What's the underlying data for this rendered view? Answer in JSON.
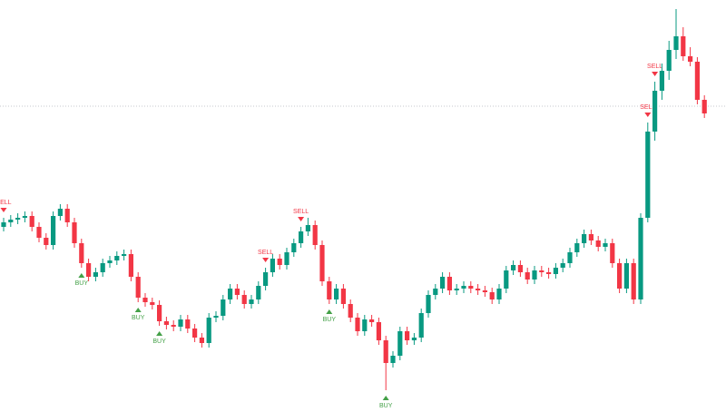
{
  "chart_data": {
    "type": "candlestick",
    "ylim": [
      0,
      454
    ],
    "up_color": "#089981",
    "down_color": "#f23645",
    "buy_color": "#43a047",
    "sell_color": "#f23645",
    "reference_line": 337,
    "reference_color": "#b2b5be",
    "open": [
      204,
      209,
      212,
      214,
      216,
      204,
      192,
      184,
      216,
      224,
      209,
      186,
      164,
      149,
      154,
      164,
      167,
      172,
      174,
      149,
      126,
      121,
      118,
      100,
      96,
      94,
      102,
      92,
      82,
      76,
      104,
      106,
      124,
      136,
      129,
      119,
      124,
      139,
      154,
      169,
      162,
      176,
      186,
      199,
      206,
      184,
      144,
      124,
      136,
      119,
      104,
      89,
      102,
      99,
      79,
      54,
      62,
      89,
      79,
      82,
      109,
      129,
      136,
      149,
      134,
      136,
      139,
      136,
      134,
      132,
      124,
      136,
      156,
      162,
      154,
      146,
      156,
      154,
      152,
      159,
      164,
      176,
      186,
      196,
      189,
      182,
      186,
      164,
      136,
      164,
      124,
      214,
      309,
      354,
      376,
      399,
      414,
      392,
      386,
      344
    ],
    "high": [
      214,
      217,
      219,
      221,
      221,
      209,
      197,
      221,
      229,
      229,
      214,
      191,
      169,
      159,
      169,
      172,
      177,
      179,
      179,
      154,
      131,
      126,
      123,
      105,
      101,
      107,
      107,
      97,
      87,
      109,
      111,
      129,
      141,
      141,
      134,
      129,
      144,
      159,
      174,
      174,
      181,
      191,
      204,
      214,
      211,
      189,
      149,
      141,
      141,
      124,
      109,
      107,
      107,
      104,
      84,
      67,
      94,
      94,
      87,
      114,
      134,
      141,
      154,
      154,
      141,
      144,
      144,
      141,
      139,
      137,
      141,
      161,
      167,
      167,
      159,
      161,
      161,
      159,
      164,
      169,
      181,
      191,
      201,
      201,
      194,
      191,
      191,
      169,
      169,
      169,
      219,
      319,
      364,
      384,
      409,
      444,
      424,
      402,
      391,
      349
    ],
    "low": [
      199,
      204,
      207,
      209,
      199,
      187,
      179,
      179,
      211,
      204,
      181,
      159,
      144,
      144,
      149,
      159,
      162,
      167,
      144,
      121,
      116,
      113,
      95,
      91,
      89,
      89,
      87,
      77,
      71,
      71,
      99,
      101,
      119,
      124,
      114,
      114,
      119,
      134,
      149,
      157,
      157,
      171,
      181,
      194,
      179,
      139,
      119,
      119,
      114,
      99,
      84,
      84,
      94,
      74,
      24,
      49,
      57,
      74,
      74,
      77,
      104,
      124,
      131,
      129,
      129,
      131,
      131,
      129,
      127,
      119,
      119,
      131,
      151,
      149,
      141,
      141,
      149,
      147,
      147,
      154,
      159,
      171,
      181,
      184,
      177,
      177,
      159,
      131,
      131,
      119,
      119,
      209,
      299,
      344,
      366,
      389,
      387,
      381,
      339,
      324
    ],
    "close": [
      209,
      212,
      214,
      216,
      204,
      192,
      184,
      216,
      224,
      209,
      186,
      164,
      149,
      154,
      164,
      167,
      172,
      174,
      149,
      126,
      121,
      118,
      100,
      96,
      94,
      102,
      92,
      82,
      76,
      104,
      106,
      124,
      136,
      129,
      119,
      124,
      139,
      154,
      169,
      162,
      176,
      186,
      199,
      206,
      184,
      144,
      124,
      136,
      119,
      104,
      89,
      102,
      99,
      79,
      54,
      62,
      89,
      79,
      82,
      109,
      129,
      136,
      149,
      134,
      136,
      139,
      136,
      134,
      132,
      124,
      136,
      156,
      162,
      154,
      146,
      156,
      154,
      152,
      159,
      164,
      176,
      186,
      196,
      189,
      182,
      186,
      164,
      136,
      164,
      124,
      214,
      309,
      354,
      376,
      399,
      414,
      392,
      386,
      344,
      329
    ],
    "signals": [
      "SELL",
      null,
      null,
      null,
      null,
      null,
      null,
      null,
      null,
      null,
      null,
      "BUY",
      null,
      null,
      null,
      null,
      null,
      null,
      null,
      "BUY",
      null,
      null,
      "BUY",
      null,
      null,
      null,
      null,
      null,
      null,
      null,
      null,
      null,
      null,
      null,
      null,
      null,
      null,
      "SELL",
      null,
      null,
      null,
      null,
      "SELL",
      null,
      null,
      null,
      "BUY",
      null,
      null,
      null,
      null,
      null,
      null,
      null,
      "BUY",
      null,
      null,
      null,
      null,
      null,
      null,
      null,
      null,
      null,
      null,
      null,
      null,
      null,
      null,
      null,
      null,
      null,
      null,
      null,
      null,
      null,
      null,
      null,
      null,
      null,
      null,
      null,
      null,
      null,
      null,
      null,
      null,
      null,
      null,
      null,
      null,
      "SELL",
      "SELL",
      null,
      null,
      null,
      null,
      null,
      null,
      null
    ]
  }
}
